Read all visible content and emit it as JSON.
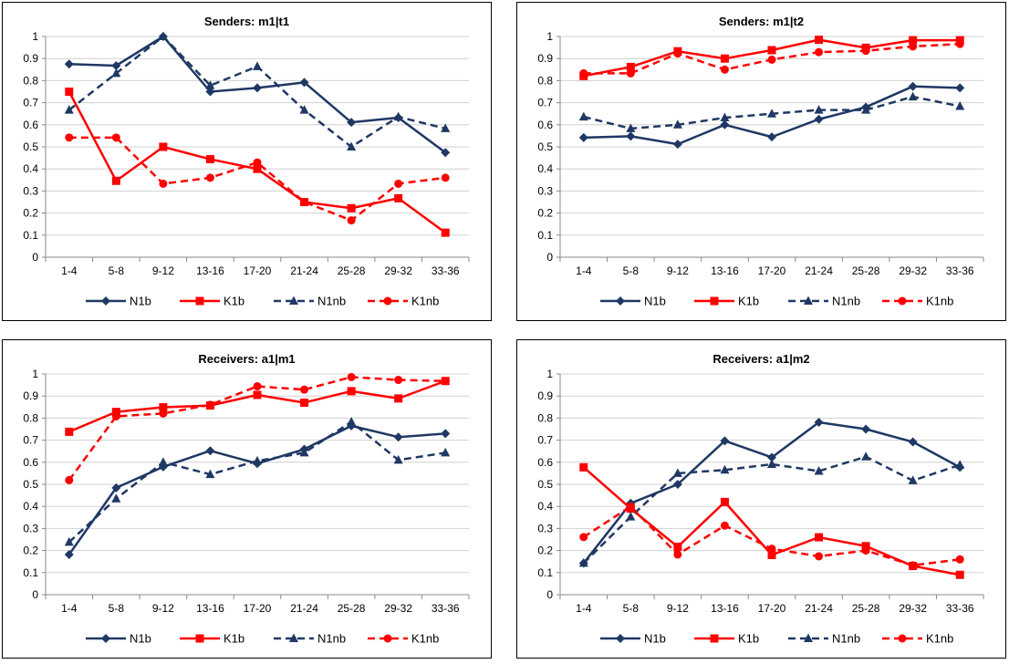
{
  "chart_data": [
    {
      "type": "line",
      "title": "Senders: m1|t1",
      "categories": [
        "1-4",
        "5-8",
        "9-12",
        "13-16",
        "17-20",
        "21-24",
        "25-28",
        "29-32",
        "33-36"
      ],
      "ylim": [
        0,
        1
      ],
      "yticks": [
        "0",
        "0.1",
        "0.2",
        "0.3",
        "0.4",
        "0.5",
        "0.6",
        "0.7",
        "0.8",
        "0.9",
        "1"
      ],
      "grid": true,
      "legend_position": "bottom",
      "series": [
        {
          "name": "N1b",
          "color": "#1F3864",
          "dashed": false,
          "marker": "diamond",
          "values": [
            0.875,
            0.868,
            1.0,
            0.75,
            0.767,
            0.792,
            0.611,
            0.632,
            0.474
          ]
        },
        {
          "name": "K1b",
          "color": "#FF0000",
          "dashed": false,
          "marker": "square",
          "values": [
            0.75,
            0.346,
            0.5,
            0.444,
            0.4,
            0.25,
            0.222,
            0.267,
            0.111
          ]
        },
        {
          "name": "N1nb",
          "color": "#1F3864",
          "dashed": true,
          "marker": "triangle",
          "values": [
            0.667,
            0.833,
            1.0,
            0.778,
            0.864,
            0.667,
            0.5,
            0.636,
            0.583
          ]
        },
        {
          "name": "K1nb",
          "color": "#FF0000",
          "dashed": true,
          "marker": "circle",
          "values": [
            0.542,
            0.542,
            0.333,
            0.36,
            0.429,
            0.25,
            0.167,
            0.333,
            0.36
          ]
        }
      ]
    },
    {
      "type": "line",
      "title": "Senders: m1|t2",
      "categories": [
        "1-4",
        "5-8",
        "9-12",
        "13-16",
        "17-20",
        "21-24",
        "25-28",
        "29-32",
        "33-36"
      ],
      "ylim": [
        0,
        1
      ],
      "yticks": [
        "0",
        "0.1",
        "0.2",
        "0.3",
        "0.4",
        "0.5",
        "0.6",
        "0.7",
        "0.8",
        "0.9",
        "1"
      ],
      "grid": true,
      "legend_position": "bottom",
      "series": [
        {
          "name": "N1b",
          "color": "#1F3864",
          "dashed": false,
          "marker": "diamond",
          "values": [
            0.542,
            0.548,
            0.512,
            0.6,
            0.545,
            0.625,
            0.68,
            0.774,
            0.767
          ]
        },
        {
          "name": "K1b",
          "color": "#FF0000",
          "dashed": false,
          "marker": "square",
          "values": [
            0.821,
            0.862,
            0.933,
            0.9,
            0.938,
            0.985,
            0.949,
            0.983,
            0.983
          ]
        },
        {
          "name": "N1nb",
          "color": "#1F3864",
          "dashed": true,
          "marker": "triangle",
          "values": [
            0.636,
            0.583,
            0.6,
            0.632,
            0.65,
            0.667,
            0.667,
            0.727,
            0.684
          ]
        },
        {
          "name": "K1nb",
          "color": "#FF0000",
          "dashed": true,
          "marker": "circle",
          "values": [
            0.833,
            0.833,
            0.923,
            0.85,
            0.895,
            0.929,
            0.935,
            0.955,
            0.966
          ]
        }
      ]
    },
    {
      "type": "line",
      "title": "Receivers: a1|m1",
      "categories": [
        "1-4",
        "5-8",
        "9-12",
        "13-16",
        "17-20",
        "21-24",
        "25-28",
        "29-32",
        "33-36"
      ],
      "ylim": [
        0,
        1
      ],
      "yticks": [
        "0",
        "0.1",
        "0.2",
        "0.3",
        "0.4",
        "0.5",
        "0.6",
        "0.7",
        "0.8",
        "0.9",
        "1"
      ],
      "grid": true,
      "legend_position": "bottom",
      "series": [
        {
          "name": "N1b",
          "color": "#1F3864",
          "dashed": false,
          "marker": "diamond",
          "values": [
            0.182,
            0.484,
            0.579,
            0.652,
            0.594,
            0.659,
            0.765,
            0.714,
            0.73
          ]
        },
        {
          "name": "K1b",
          "color": "#FF0000",
          "dashed": false,
          "marker": "square",
          "values": [
            0.738,
            0.828,
            0.849,
            0.857,
            0.905,
            0.87,
            0.922,
            0.889,
            0.968
          ]
        },
        {
          "name": "N1nb",
          "color": "#1F3864",
          "dashed": true,
          "marker": "triangle",
          "values": [
            0.238,
            0.435,
            0.6,
            0.545,
            0.606,
            0.643,
            0.783,
            0.61,
            0.643
          ]
        },
        {
          "name": "K1nb",
          "color": "#FF0000",
          "dashed": true,
          "marker": "circle",
          "values": [
            0.519,
            0.808,
            0.821,
            0.86,
            0.944,
            0.929,
            0.986,
            0.973,
            0.968
          ]
        }
      ]
    },
    {
      "type": "line",
      "title": "Receivers: a1|m2",
      "categories": [
        "1-4",
        "5-8",
        "9-12",
        "13-16",
        "17-20",
        "21-24",
        "25-28",
        "29-32",
        "33-36"
      ],
      "ylim": [
        0,
        1
      ],
      "yticks": [
        "0",
        "0.1",
        "0.2",
        "0.3",
        "0.4",
        "0.5",
        "0.6",
        "0.7",
        "0.8",
        "0.9",
        "1"
      ],
      "grid": true,
      "legend_position": "bottom",
      "series": [
        {
          "name": "N1b",
          "color": "#1F3864",
          "dashed": false,
          "marker": "diamond",
          "values": [
            0.143,
            0.414,
            0.5,
            0.697,
            0.622,
            0.781,
            0.75,
            0.692,
            0.577
          ]
        },
        {
          "name": "K1b",
          "color": "#FF0000",
          "dashed": false,
          "marker": "square",
          "values": [
            0.577,
            0.39,
            0.217,
            0.42,
            0.18,
            0.26,
            0.22,
            0.13,
            0.09
          ]
        },
        {
          "name": "N1nb",
          "color": "#1F3864",
          "dashed": true,
          "marker": "triangle",
          "values": [
            0.143,
            0.353,
            0.55,
            0.565,
            0.591,
            0.56,
            0.625,
            0.517,
            0.588
          ]
        },
        {
          "name": "K1nb",
          "color": "#FF0000",
          "dashed": true,
          "marker": "circle",
          "values": [
            0.261,
            0.4,
            0.182,
            0.313,
            0.208,
            0.174,
            0.2,
            0.133,
            0.16
          ]
        }
      ]
    }
  ]
}
